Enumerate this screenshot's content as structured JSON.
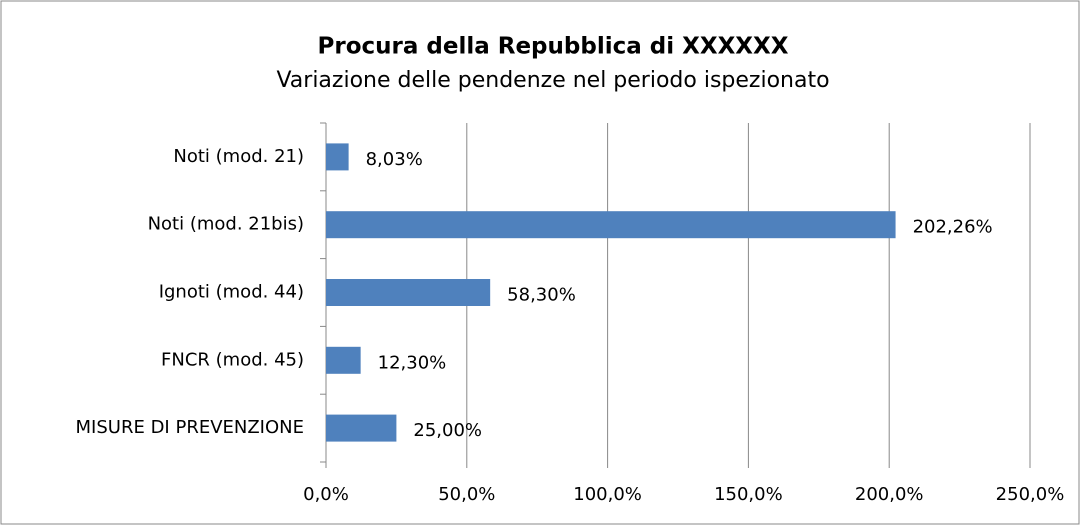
{
  "chart_data": {
    "type": "bar",
    "orientation": "horizontal",
    "title": "Procura della Repubblica di XXXXXX",
    "subtitle": "Variazione delle pendenze nel periodo ispezionato",
    "categories": [
      "Noti (mod. 21)",
      "Noti (mod. 21bis)",
      "Ignoti (mod. 44)",
      "FNCR (mod. 45)",
      "MISURE DI PREVENZIONE"
    ],
    "values": [
      8.03,
      202.26,
      58.3,
      12.3,
      25.0
    ],
    "value_labels": [
      "8,03%",
      "202,26%",
      "58,30%",
      "12,30%",
      "25,00%"
    ],
    "color": "#4f81bd",
    "xlim": [
      0,
      250
    ],
    "xticks": [
      {
        "value": 0,
        "label": "0,0%"
      },
      {
        "value": 50,
        "label": "50,0%"
      },
      {
        "value": 100,
        "label": "100,0%"
      },
      {
        "value": 150,
        "label": "150,0%"
      },
      {
        "value": 200,
        "label": "200,0%"
      },
      {
        "value": 250,
        "label": "250,0%"
      }
    ],
    "grid": true
  }
}
